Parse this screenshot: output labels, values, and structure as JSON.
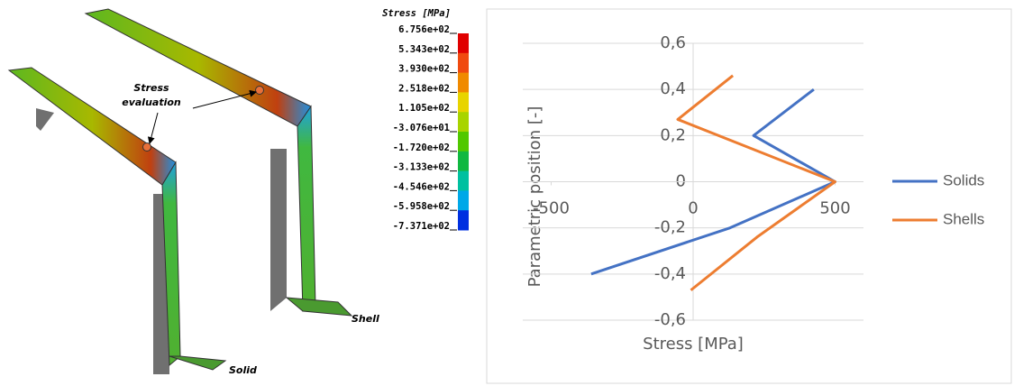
{
  "figure": {
    "colorbar_title": "Stress [MPa]",
    "colorbar_ticks": [
      {
        "value": 675.6,
        "label": "6.756e+02"
      },
      {
        "value": 534.3,
        "label": "5.343e+02"
      },
      {
        "value": 393.0,
        "label": "3.930e+02"
      },
      {
        "value": 251.8,
        "label": "2.518e+02"
      },
      {
        "value": 110.5,
        "label": "1.105e+02"
      },
      {
        "value": -30.76,
        "label": "-3.076e+01"
      },
      {
        "value": -172.0,
        "label": "-1.720e+02"
      },
      {
        "value": -313.3,
        "label": "-3.133e+02"
      },
      {
        "value": -454.6,
        "label": "-4.546e+02"
      },
      {
        "value": -595.8,
        "label": "-5.958e+02"
      },
      {
        "value": -737.1,
        "label": "-7.371e+02"
      }
    ],
    "colorbar_colors": [
      "#e00000",
      "#f04a10",
      "#f08a00",
      "#e8d400",
      "#a8d400",
      "#50c800",
      "#10b840",
      "#00c0a0",
      "#00a8e8",
      "#0030e0"
    ],
    "annotations": [
      "Stress evaluation",
      "Solid",
      "Shell"
    ]
  },
  "chart_data": {
    "type": "line",
    "x_label": "Stress [MPa]",
    "y_label": "Parametric position [-]",
    "xlim": [
      -600,
      600
    ],
    "xticks": [
      -500,
      0,
      500
    ],
    "ylim": [
      -0.6,
      0.6
    ],
    "yticks": [
      {
        "value": 0.6,
        "label": "0,6"
      },
      {
        "value": 0.4,
        "label": "0,4"
      },
      {
        "value": 0.2,
        "label": "0,2"
      },
      0,
      {
        "value": -0.2,
        "label": "-0,2"
      },
      {
        "value": -0.4,
        "label": "-0,4"
      },
      {
        "value": -0.6,
        "label": "-0,6"
      }
    ],
    "grid": true,
    "legend": "right",
    "series": [
      {
        "name": "Solids",
        "color": "#4472c4",
        "x": [
          425,
          213,
          500,
          130,
          -359
        ],
        "values": [
          0.4,
          0.2,
          0,
          -0.2,
          -0.4
        ]
      },
      {
        "name": "Shells",
        "color": "#ed7d31",
        "x": [
          140,
          -54,
          500,
          225,
          -8
        ],
        "values": [
          0.46,
          0.27,
          0,
          -0.24,
          -0.47
        ]
      }
    ]
  }
}
